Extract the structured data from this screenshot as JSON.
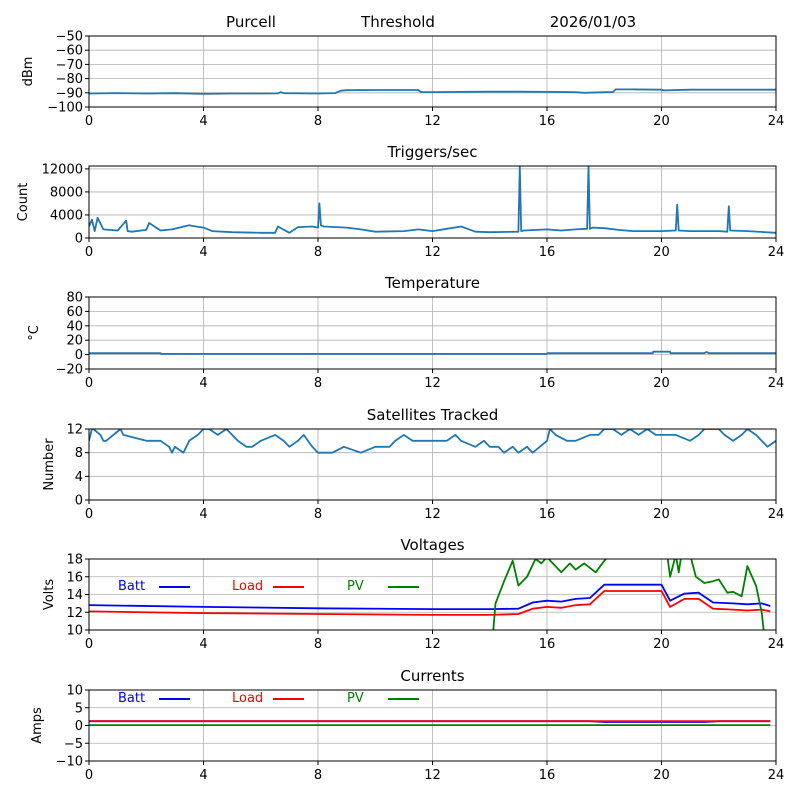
{
  "header": {
    "station": "Purcell",
    "mode": "Threshold",
    "date": "2026/01/03"
  },
  "chart_data": [
    {
      "type": "line",
      "id": "signal",
      "title": "",
      "xlabel": "",
      "ylabel": "dBm",
      "xlim": [
        0,
        24
      ],
      "ylim": [
        -100,
        -50
      ],
      "xticks": [
        "0",
        "4",
        "8",
        "12",
        "16",
        "20",
        "24"
      ],
      "yticks": [
        "−50",
        "−60",
        "−70",
        "−80",
        "−90",
        "−100"
      ],
      "ytick_values": [
        -50,
        -60,
        -70,
        -80,
        -90,
        -100
      ],
      "grid": true,
      "series": [
        {
          "name": "dBm",
          "color": "#1f77b4",
          "x": [
            0,
            1,
            2,
            3,
            4,
            5,
            6,
            6.6,
            6.7,
            6.8,
            8,
            8.6,
            8.8,
            9,
            10,
            11,
            11.5,
            11.6,
            12,
            13,
            14,
            15,
            16,
            17,
            17.3,
            18,
            18.3,
            18.4,
            19,
            20,
            20.1,
            21,
            22,
            23,
            24
          ],
          "y": [
            -90.5,
            -90.2,
            -90.5,
            -90.3,
            -90.7,
            -90.5,
            -90.5,
            -90.4,
            -89.5,
            -90.3,
            -90.5,
            -90.2,
            -88.5,
            -88.2,
            -88,
            -88,
            -88,
            -89.5,
            -89.5,
            -89.4,
            -89.2,
            -89.2,
            -89.4,
            -89.6,
            -90,
            -89.6,
            -89.5,
            -87.6,
            -87.6,
            -87.8,
            -88.3,
            -87.8,
            -87.8,
            -87.8,
            -87.8
          ]
        }
      ]
    },
    {
      "type": "line",
      "id": "triggers",
      "title": "Triggers/sec",
      "xlabel": "",
      "ylabel": "Count",
      "xlim": [
        0,
        24
      ],
      "ylim": [
        0,
        12500
      ],
      "xticks": [
        "0",
        "4",
        "8",
        "12",
        "16",
        "20",
        "24"
      ],
      "yticks": [
        "12000",
        "8000",
        "4000",
        "0"
      ],
      "ytick_values": [
        12000,
        8000,
        4000,
        0
      ],
      "grid": true,
      "series": [
        {
          "name": "Count",
          "color": "#1f77b4",
          "x": [
            0,
            0.1,
            0.2,
            0.3,
            0.5,
            1,
            1.3,
            1.35,
            1.5,
            2,
            2.1,
            2.5,
            2.9,
            3.5,
            3.6,
            4,
            4.3,
            5,
            6,
            6.5,
            6.6,
            7,
            7.3,
            7.8,
            8,
            8.05,
            8.1,
            8.2,
            9,
            9.5,
            10,
            11,
            11.5,
            12,
            12.5,
            13,
            13.5,
            14,
            15,
            15.05,
            15.1,
            15.2,
            16,
            16.5,
            17,
            17.4,
            17.45,
            17.5,
            17.6,
            18,
            18.5,
            19,
            20,
            20.5,
            20.55,
            20.6,
            21,
            22,
            22.3,
            22.35,
            22.4,
            23,
            24
          ],
          "y": [
            2000,
            3200,
            1200,
            3500,
            1500,
            1300,
            3000,
            1200,
            1100,
            1400,
            2600,
            1300,
            1500,
            2200,
            2100,
            1800,
            1200,
            1000,
            900,
            900,
            2000,
            900,
            1900,
            2000,
            1800,
            6000,
            2200,
            2000,
            1800,
            1500,
            1100,
            1200,
            1500,
            1200,
            1600,
            2000,
            1100,
            1000,
            1100,
            12500,
            1200,
            1300,
            1500,
            1300,
            1500,
            1600,
            12500,
            1600,
            1800,
            1700,
            1400,
            1200,
            1200,
            1300,
            5800,
            1300,
            1200,
            1200,
            1100,
            5500,
            1300,
            1200,
            900
          ]
        }
      ]
    },
    {
      "type": "line",
      "id": "temperature",
      "title": "Temperature",
      "xlabel": "",
      "ylabel": "°C",
      "xlim": [
        0,
        24
      ],
      "ylim": [
        -20,
        80
      ],
      "xticks": [
        "0",
        "4",
        "8",
        "12",
        "16",
        "20",
        "24"
      ],
      "yticks": [
        "80",
        "60",
        "40",
        "20",
        "0",
        "−20"
      ],
      "ytick_values": [
        80,
        60,
        40,
        20,
        0,
        -20
      ],
      "grid": true,
      "series": [
        {
          "name": "°C",
          "color": "#1f77b4",
          "x": [
            0,
            2.5,
            2.51,
            16,
            16.01,
            19.7,
            19.71,
            20.3,
            20.31,
            21.5,
            21.55,
            21.6,
            21.65,
            24
          ],
          "y": [
            2,
            2,
            1,
            1,
            2,
            2,
            4,
            4,
            2,
            2,
            3.5,
            3.5,
            2,
            2
          ]
        }
      ]
    },
    {
      "type": "line",
      "id": "satellites",
      "title": "Satellites Tracked",
      "xlabel": "",
      "ylabel": "Number",
      "xlim": [
        0,
        24
      ],
      "ylim": [
        0,
        12
      ],
      "xticks": [
        "0",
        "4",
        "8",
        "12",
        "16",
        "20",
        "24"
      ],
      "yticks": [
        "12",
        "8",
        "4",
        "0"
      ],
      "ytick_values": [
        12,
        8,
        4,
        0
      ],
      "grid": true,
      "series": [
        {
          "name": "Number",
          "color": "#1f77b4",
          "x": [
            0,
            0.1,
            0.15,
            0.4,
            0.5,
            0.6,
            1.1,
            1.2,
            2,
            2.5,
            2.8,
            2.9,
            3.0,
            3.3,
            3.5,
            3.8,
            4.0,
            4.2,
            4.5,
            4.8,
            5.0,
            5.2,
            5.5,
            5.7,
            6.0,
            6.5,
            6.8,
            7.0,
            7.3,
            7.5,
            7.8,
            8.0,
            8.5,
            8.9,
            9.5,
            10,
            10.5,
            10.7,
            11,
            11.3,
            11.5,
            12,
            12.5,
            12.8,
            13,
            13.5,
            13.8,
            14,
            14.3,
            14.5,
            14.8,
            15,
            15.3,
            15.5,
            16,
            16.1,
            16.3,
            16.7,
            17,
            17.5,
            17.8,
            18.0,
            18.3,
            18.6,
            18.9,
            19.2,
            19.5,
            19.8,
            20,
            20.5,
            21,
            21.3,
            21.5,
            22,
            22.2,
            22.5,
            22.8,
            23.0,
            23.3,
            23.5,
            23.7,
            24
          ],
          "y": [
            10,
            12,
            12,
            11,
            10,
            10,
            12,
            11,
            10,
            10,
            9,
            8,
            9,
            8,
            10,
            11,
            12,
            12,
            11,
            12,
            11,
            10,
            9,
            9,
            10,
            11,
            10,
            9,
            10,
            11,
            9,
            8,
            8,
            9,
            8,
            9,
            9,
            10,
            11,
            10,
            10,
            10,
            10,
            11,
            10,
            9,
            10,
            9,
            9,
            8,
            9,
            8,
            9,
            8,
            10,
            12,
            11,
            10,
            10,
            11,
            11,
            12,
            12,
            11,
            12,
            11,
            12,
            11,
            11,
            11,
            10,
            11,
            12,
            12,
            11,
            10,
            11,
            12,
            11,
            10,
            9,
            10
          ]
        }
      ]
    },
    {
      "type": "line",
      "id": "voltages",
      "title": "Voltages",
      "xlabel": "",
      "ylabel": "Volts",
      "xlim": [
        0,
        24
      ],
      "ylim": [
        10,
        18
      ],
      "xticks": [
        "0",
        "4",
        "8",
        "12",
        "16",
        "20",
        "24"
      ],
      "yticks": [
        "18",
        "16",
        "14",
        "12",
        "10"
      ],
      "ytick_values": [
        18,
        16,
        14,
        12,
        10
      ],
      "grid": true,
      "legend": "top-left, horizontal",
      "series": [
        {
          "name": "Batt",
          "color": "#0000ff",
          "x": [
            0,
            4,
            8,
            12,
            14,
            15,
            15.5,
            16,
            16.5,
            17,
            17.5,
            18,
            20,
            20.3,
            20.8,
            21.3,
            21.8,
            22.5,
            23,
            23.5,
            23.8
          ],
          "y": [
            12.8,
            12.6,
            12.45,
            12.35,
            12.35,
            12.4,
            13.1,
            13.3,
            13.2,
            13.5,
            13.6,
            15.1,
            15.1,
            13.3,
            14.1,
            14.2,
            13.1,
            13.0,
            12.9,
            13.0,
            12.7
          ]
        },
        {
          "name": "Load",
          "color": "#ff0000",
          "x": [
            0,
            4,
            8,
            12,
            14,
            15,
            15.5,
            16,
            16.5,
            17,
            17.5,
            18,
            20,
            20.3,
            20.8,
            21.3,
            21.8,
            22.5,
            23,
            23.5,
            23.8
          ],
          "y": [
            12.1,
            11.9,
            11.8,
            11.7,
            11.7,
            11.8,
            12.4,
            12.6,
            12.5,
            12.8,
            12.9,
            14.4,
            14.4,
            12.6,
            13.5,
            13.5,
            12.4,
            12.3,
            12.2,
            12.3,
            12.1
          ]
        },
        {
          "name": "PV",
          "color": "#008000",
          "x": [
            14.1,
            14.2,
            14.5,
            14.8,
            15.0,
            15.3,
            15.6,
            15.8,
            16.0,
            16.5,
            16.8,
            17.0,
            17.3,
            17.7,
            18.0,
            18.2,
            20.2,
            20.3,
            20.5,
            20.6,
            20.7,
            21.0,
            21.2,
            21.5,
            21.8,
            22.0,
            22.3,
            22.5,
            22.8,
            23.0,
            23.3,
            23.5,
            23.6,
            23.8
          ],
          "y": [
            9.0,
            13.0,
            15.5,
            17.8,
            15.0,
            16.0,
            18.0,
            17.5,
            18.2,
            16.5,
            17.5,
            16.8,
            17.5,
            16.5,
            17.8,
            18.5,
            18.5,
            16.0,
            18.5,
            16.5,
            18.5,
            18.5,
            16.0,
            15.3,
            15.5,
            15.7,
            14.2,
            14.3,
            13.8,
            17.2,
            15.0,
            12.0,
            9.0,
            9.0
          ]
        }
      ]
    },
    {
      "type": "line",
      "id": "currents",
      "title": "Currents",
      "xlabel": "",
      "ylabel": "Amps",
      "xlim": [
        0,
        24
      ],
      "ylim": [
        -10,
        10
      ],
      "xticks": [
        "0",
        "4",
        "8",
        "12",
        "16",
        "20",
        "24"
      ],
      "yticks": [
        "10",
        "5",
        "0",
        "−5",
        "−10"
      ],
      "ytick_values": [
        10,
        5,
        0,
        -5,
        -10
      ],
      "grid": true,
      "legend": "top-left, horizontal",
      "series": [
        {
          "name": "Batt",
          "color": "#0000ff",
          "x": [
            0,
            17.5,
            18,
            21.5,
            22,
            23.8
          ],
          "y": [
            1.2,
            1.2,
            1.0,
            1.0,
            1.2,
            1.2
          ]
        },
        {
          "name": "Load",
          "color": "#ff0000",
          "x": [
            0,
            23.8
          ],
          "y": [
            1.2,
            1.2
          ]
        },
        {
          "name": "PV",
          "color": "#008000",
          "x": [
            0,
            23.8
          ],
          "y": [
            0.1,
            0.1
          ]
        }
      ]
    }
  ]
}
